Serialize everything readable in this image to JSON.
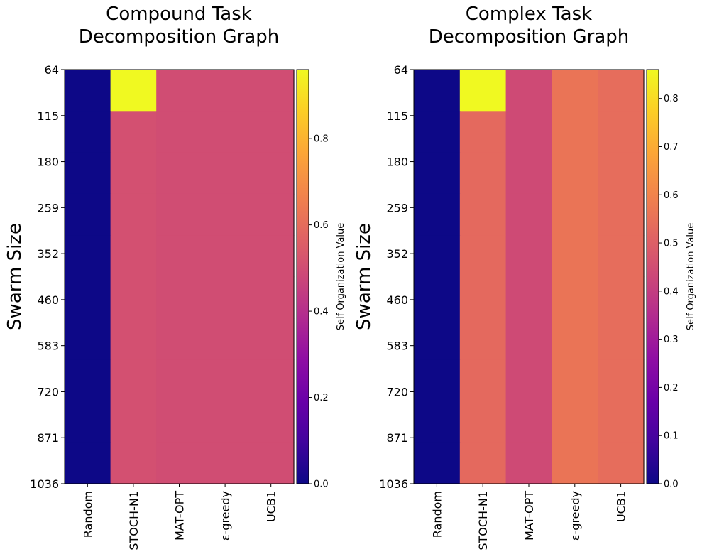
{
  "chart_data": [
    {
      "type": "heatmap",
      "title": [
        "Compound Task",
        "Decomposition Graph"
      ],
      "ylabel": "Swarm Size",
      "colorbar_label": "Self Organization Value",
      "x_categories": [
        "Random",
        "STOCH-N1",
        "MAT-OPT",
        "ε-greedy",
        "UCB1"
      ],
      "y_ticks": [
        "64",
        "115",
        "180",
        "259",
        "352",
        "460",
        "583",
        "720",
        "871",
        "1036"
      ],
      "colormap": "plasma",
      "value_range": [
        0,
        0.96
      ],
      "colorbar_ticks": [
        "0.0",
        "0.2",
        "0.4",
        "0.6",
        "0.8"
      ],
      "rows": [
        {
          "swarm_size": "64",
          "values": [
            0.0,
            0.96,
            0.5,
            0.5,
            0.5
          ]
        },
        {
          "swarm_size": "115",
          "values": [
            0.0,
            0.51,
            0.5,
            0.5,
            0.5
          ]
        },
        {
          "swarm_size": "180",
          "values": [
            0.0,
            0.51,
            0.5,
            0.5,
            0.5
          ]
        },
        {
          "swarm_size": "259",
          "values": [
            0.0,
            0.51,
            0.5,
            0.5,
            0.5
          ]
        },
        {
          "swarm_size": "352",
          "values": [
            0.0,
            0.51,
            0.5,
            0.5,
            0.5
          ]
        },
        {
          "swarm_size": "460",
          "values": [
            0.0,
            0.51,
            0.5,
            0.5,
            0.5
          ]
        },
        {
          "swarm_size": "583",
          "values": [
            0.0,
            0.51,
            0.5,
            0.5,
            0.5
          ]
        },
        {
          "swarm_size": "720",
          "values": [
            0.0,
            0.51,
            0.5,
            0.5,
            0.5
          ]
        },
        {
          "swarm_size": "871",
          "values": [
            0.0,
            0.51,
            0.5,
            0.5,
            0.5
          ]
        },
        {
          "swarm_size": "1036",
          "values": [
            0.0,
            0.51,
            0.5,
            0.5,
            0.5
          ]
        }
      ]
    },
    {
      "type": "heatmap",
      "title": [
        "Complex Task",
        "Decomposition Graph"
      ],
      "ylabel": "Swarm Size",
      "colorbar_label": "Self Organization Value",
      "x_categories": [
        "Random",
        "STOCH-N1",
        "MAT-OPT",
        "ε-greedy",
        "UCB1"
      ],
      "y_ticks": [
        "64",
        "115",
        "180",
        "259",
        "352",
        "460",
        "583",
        "720",
        "871",
        "1036"
      ],
      "colormap": "plasma",
      "value_range": [
        0,
        0.86
      ],
      "colorbar_ticks": [
        "0.0",
        "0.1",
        "0.2",
        "0.3",
        "0.4",
        "0.5",
        "0.6",
        "0.7",
        "0.8"
      ],
      "rows": [
        {
          "swarm_size": "64",
          "values": [
            0.0,
            0.86,
            0.44,
            0.56,
            0.54
          ]
        },
        {
          "swarm_size": "115",
          "values": [
            0.0,
            0.53,
            0.44,
            0.56,
            0.54
          ]
        },
        {
          "swarm_size": "180",
          "values": [
            0.0,
            0.53,
            0.44,
            0.56,
            0.54
          ]
        },
        {
          "swarm_size": "259",
          "values": [
            0.0,
            0.53,
            0.44,
            0.56,
            0.54
          ]
        },
        {
          "swarm_size": "352",
          "values": [
            0.0,
            0.53,
            0.44,
            0.56,
            0.54
          ]
        },
        {
          "swarm_size": "460",
          "values": [
            0.0,
            0.53,
            0.44,
            0.56,
            0.54
          ]
        },
        {
          "swarm_size": "583",
          "values": [
            0.0,
            0.53,
            0.44,
            0.56,
            0.54
          ]
        },
        {
          "swarm_size": "720",
          "values": [
            0.0,
            0.53,
            0.44,
            0.56,
            0.54
          ]
        },
        {
          "swarm_size": "871",
          "values": [
            0.0,
            0.53,
            0.44,
            0.56,
            0.54
          ]
        },
        {
          "swarm_size": "1036",
          "values": [
            0.0,
            0.53,
            0.44,
            0.56,
            0.54
          ]
        }
      ]
    }
  ]
}
